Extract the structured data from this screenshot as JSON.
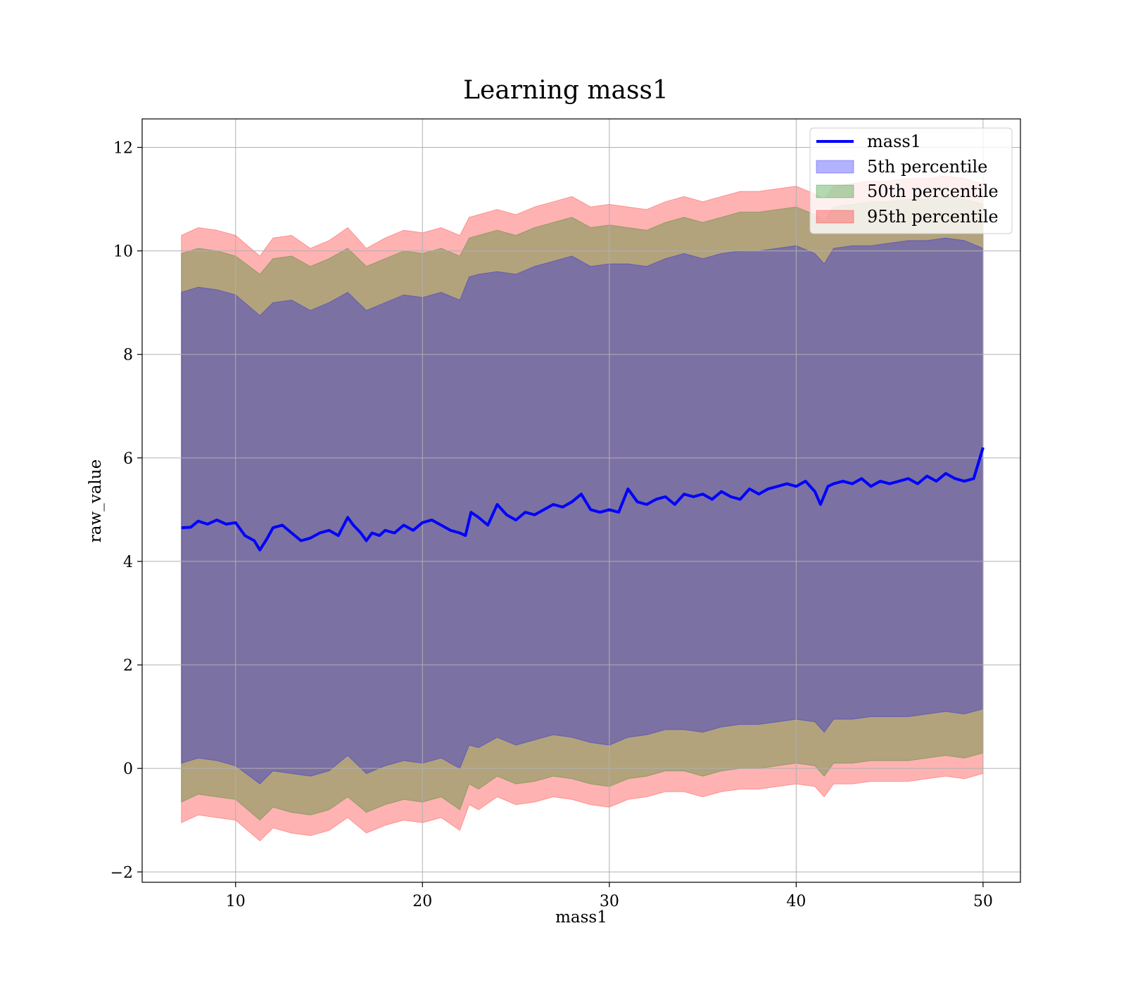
{
  "chart_data": {
    "type": "line",
    "title": "Learning mass1",
    "xlabel": "mass1",
    "ylabel": "raw_value",
    "xlim": [
      5,
      52
    ],
    "ylim": [
      -2.2,
      12.55
    ],
    "xticks": [
      10,
      20,
      30,
      40,
      50
    ],
    "yticks": [
      -2,
      0,
      2,
      4,
      6,
      8,
      10,
      12
    ],
    "ytick_labels": [
      "−2",
      "0",
      "2",
      "4",
      "6",
      "8",
      "10",
      "12"
    ],
    "grid": true,
    "legend_position": "top-right",
    "legend": [
      {
        "label": "mass1",
        "kind": "line",
        "color": "#0000ff"
      },
      {
        "label": "5th percentile",
        "kind": "band",
        "color": "#0000ff"
      },
      {
        "label": "50th percentile",
        "kind": "band",
        "color": "#008000"
      },
      {
        "label": "95th percentile",
        "kind": "band",
        "color": "#ff0000"
      }
    ],
    "line_series": {
      "name": "mass1",
      "color": "#0000ff",
      "x": [
        7.1,
        7.6,
        8.0,
        8.5,
        9.0,
        9.5,
        10.0,
        10.5,
        11.0,
        11.3,
        11.7,
        12.0,
        12.5,
        13.0,
        13.5,
        14.0,
        14.5,
        15.0,
        15.5,
        16.0,
        16.3,
        16.7,
        17.0,
        17.3,
        17.7,
        18.0,
        18.5,
        19.0,
        19.5,
        20.0,
        20.5,
        21.0,
        21.5,
        22.0,
        22.3,
        22.6,
        23.0,
        23.5,
        24.0,
        24.5,
        25.0,
        25.5,
        26.0,
        26.5,
        27.0,
        27.5,
        28.0,
        28.5,
        29.0,
        29.5,
        30.0,
        30.5,
        31.0,
        31.5,
        32.0,
        32.5,
        33.0,
        33.5,
        34.0,
        34.5,
        35.0,
        35.5,
        36.0,
        36.5,
        37.0,
        37.5,
        38.0,
        38.5,
        39.0,
        39.5,
        40.0,
        40.5,
        41.0,
        41.3,
        41.7,
        42.0,
        42.5,
        43.0,
        43.5,
        44.0,
        44.5,
        45.0,
        45.5,
        46.0,
        46.5,
        47.0,
        47.5,
        48.0,
        48.5,
        49.0,
        49.5,
        50.0
      ],
      "y": [
        4.65,
        4.66,
        4.78,
        4.72,
        4.8,
        4.72,
        4.75,
        4.5,
        4.4,
        4.22,
        4.45,
        4.65,
        4.7,
        4.55,
        4.4,
        4.45,
        4.55,
        4.6,
        4.5,
        4.85,
        4.7,
        4.55,
        4.4,
        4.55,
        4.5,
        4.6,
        4.55,
        4.7,
        4.6,
        4.75,
        4.8,
        4.7,
        4.6,
        4.55,
        4.5,
        4.95,
        4.85,
        4.7,
        5.1,
        4.9,
        4.8,
        4.95,
        4.9,
        5.0,
        5.1,
        5.05,
        5.15,
        5.3,
        5.0,
        4.95,
        5.0,
        4.95,
        5.4,
        5.15,
        5.1,
        5.2,
        5.25,
        5.1,
        5.3,
        5.25,
        5.3,
        5.2,
        5.35,
        5.25,
        5.2,
        5.4,
        5.3,
        5.4,
        5.45,
        5.5,
        5.45,
        5.55,
        5.35,
        5.1,
        5.45,
        5.5,
        5.55,
        5.5,
        5.6,
        5.45,
        5.55,
        5.5,
        5.55,
        5.6,
        5.5,
        5.65,
        5.55,
        5.7,
        5.6,
        5.55,
        5.6,
        6.2
      ]
    },
    "bands": [
      {
        "name": "95th percentile",
        "color": "#ff0000",
        "x": [
          7.1,
          8.0,
          9.0,
          10.0,
          11.3,
          12.0,
          13.0,
          14.0,
          15.0,
          16.0,
          17.0,
          18.0,
          19.0,
          20.0,
          21.0,
          22.0,
          22.5,
          23.0,
          24.0,
          25.0,
          26.0,
          27.0,
          28.0,
          29.0,
          30.0,
          31.0,
          32.0,
          33.0,
          34.0,
          35.0,
          36.0,
          37.0,
          38.0,
          39.0,
          40.0,
          41.0,
          41.5,
          42.0,
          43.0,
          44.0,
          45.0,
          46.0,
          47.0,
          48.0,
          49.0,
          50.0
        ],
        "upper": [
          10.3,
          10.45,
          10.4,
          10.3,
          9.9,
          10.25,
          10.3,
          10.05,
          10.2,
          10.45,
          10.05,
          10.25,
          10.4,
          10.35,
          10.45,
          10.3,
          10.65,
          10.7,
          10.8,
          10.7,
          10.85,
          10.95,
          11.05,
          10.85,
          10.9,
          10.85,
          10.8,
          10.95,
          11.05,
          10.95,
          11.05,
          11.15,
          11.15,
          11.2,
          11.25,
          11.1,
          11.0,
          11.25,
          11.3,
          11.35,
          11.35,
          11.4,
          11.4,
          11.45,
          11.4,
          11.3
        ],
        "lower": [
          -1.05,
          -0.9,
          -0.95,
          -1.0,
          -1.4,
          -1.15,
          -1.25,
          -1.3,
          -1.2,
          -0.95,
          -1.25,
          -1.1,
          -1.0,
          -1.05,
          -0.95,
          -1.2,
          -0.7,
          -0.8,
          -0.55,
          -0.7,
          -0.65,
          -0.55,
          -0.6,
          -0.7,
          -0.75,
          -0.6,
          -0.55,
          -0.45,
          -0.45,
          -0.55,
          -0.45,
          -0.4,
          -0.4,
          -0.35,
          -0.3,
          -0.35,
          -0.55,
          -0.3,
          -0.3,
          -0.25,
          -0.25,
          -0.25,
          -0.2,
          -0.15,
          -0.2,
          -0.1
        ]
      },
      {
        "name": "50th percentile",
        "color": "#008000",
        "x": [
          7.1,
          8.0,
          9.0,
          10.0,
          11.3,
          12.0,
          13.0,
          14.0,
          15.0,
          16.0,
          17.0,
          18.0,
          19.0,
          20.0,
          21.0,
          22.0,
          22.5,
          23.0,
          24.0,
          25.0,
          26.0,
          27.0,
          28.0,
          29.0,
          30.0,
          31.0,
          32.0,
          33.0,
          34.0,
          35.0,
          36.0,
          37.0,
          38.0,
          39.0,
          40.0,
          41.0,
          41.5,
          42.0,
          43.0,
          44.0,
          45.0,
          46.0,
          47.0,
          48.0,
          49.0,
          50.0
        ],
        "upper": [
          9.95,
          10.05,
          10.0,
          9.9,
          9.55,
          9.85,
          9.9,
          9.7,
          9.85,
          10.05,
          9.7,
          9.85,
          10.0,
          9.95,
          10.05,
          9.9,
          10.25,
          10.3,
          10.4,
          10.3,
          10.45,
          10.55,
          10.65,
          10.45,
          10.5,
          10.45,
          10.4,
          10.55,
          10.65,
          10.55,
          10.65,
          10.75,
          10.75,
          10.8,
          10.85,
          10.7,
          10.6,
          10.85,
          10.9,
          10.95,
          10.95,
          11.0,
          11.0,
          11.05,
          11.0,
          10.9
        ],
        "lower": [
          -0.65,
          -0.5,
          -0.55,
          -0.6,
          -1.0,
          -0.75,
          -0.85,
          -0.9,
          -0.8,
          -0.55,
          -0.85,
          -0.7,
          -0.6,
          -0.65,
          -0.55,
          -0.8,
          -0.3,
          -0.4,
          -0.15,
          -0.3,
          -0.25,
          -0.15,
          -0.2,
          -0.3,
          -0.35,
          -0.2,
          -0.15,
          -0.05,
          -0.05,
          -0.15,
          -0.05,
          0.0,
          0.0,
          0.05,
          0.1,
          0.05,
          -0.15,
          0.1,
          0.1,
          0.15,
          0.15,
          0.15,
          0.2,
          0.25,
          0.2,
          0.3
        ]
      },
      {
        "name": "5th percentile",
        "color": "#0000ff",
        "x": [
          7.1,
          8.0,
          9.0,
          10.0,
          11.3,
          12.0,
          13.0,
          14.0,
          15.0,
          16.0,
          17.0,
          18.0,
          19.0,
          20.0,
          21.0,
          22.0,
          22.5,
          23.0,
          24.0,
          25.0,
          26.0,
          27.0,
          28.0,
          29.0,
          30.0,
          31.0,
          32.0,
          33.0,
          34.0,
          35.0,
          36.0,
          37.0,
          38.0,
          39.0,
          40.0,
          41.0,
          41.5,
          42.0,
          43.0,
          44.0,
          45.0,
          46.0,
          47.0,
          48.0,
          49.0,
          50.0
        ],
        "upper": [
          9.2,
          9.3,
          9.25,
          9.15,
          8.75,
          9.0,
          9.05,
          8.85,
          9.0,
          9.2,
          8.85,
          9.0,
          9.15,
          9.1,
          9.2,
          9.05,
          9.5,
          9.55,
          9.6,
          9.55,
          9.7,
          9.8,
          9.9,
          9.7,
          9.75,
          9.75,
          9.7,
          9.85,
          9.95,
          9.85,
          9.95,
          10.0,
          10.0,
          10.05,
          10.1,
          9.95,
          9.75,
          10.05,
          10.1,
          10.1,
          10.15,
          10.2,
          10.2,
          10.25,
          10.2,
          10.05
        ],
        "lower": [
          0.1,
          0.2,
          0.15,
          0.05,
          -0.3,
          -0.05,
          -0.1,
          -0.15,
          -0.05,
          0.25,
          -0.1,
          0.05,
          0.15,
          0.1,
          0.2,
          0.0,
          0.45,
          0.4,
          0.6,
          0.45,
          0.55,
          0.65,
          0.6,
          0.5,
          0.45,
          0.6,
          0.65,
          0.75,
          0.75,
          0.7,
          0.8,
          0.85,
          0.85,
          0.9,
          0.95,
          0.9,
          0.7,
          0.95,
          0.95,
          1.0,
          1.0,
          1.0,
          1.05,
          1.1,
          1.05,
          1.15
        ]
      }
    ]
  }
}
